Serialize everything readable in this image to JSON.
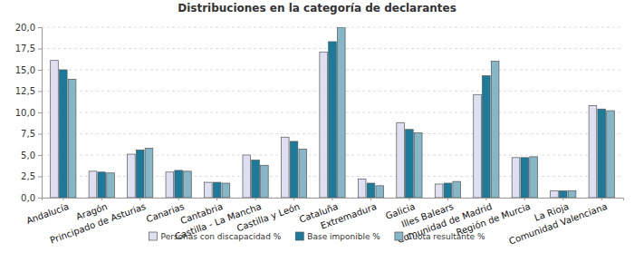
{
  "chart_data": {
    "type": "bar",
    "title": "Distribuciones en la categoría de declarantes",
    "categories": [
      "Andalucía",
      "Aragón",
      "Principado de Asturias",
      "Canarias",
      "Cantabria",
      "Castilla - La Mancha",
      "Castilla y León",
      "Cataluña",
      "Extremadura",
      "Galicia",
      "Illes Balears",
      "Comunidad de Madrid",
      "Región de Murcia",
      "La Rioja",
      "Comunidad Valenciana"
    ],
    "series": [
      {
        "name": "Personas con discapacidad %",
        "color": "#dedff0",
        "values": [
          16.1,
          3.1,
          5.1,
          3.0,
          1.8,
          5.0,
          7.1,
          17.1,
          2.2,
          8.8,
          1.6,
          12.1,
          4.7,
          0.8,
          10.8
        ]
      },
      {
        "name": "Base imponible %",
        "color": "#1b7b9c",
        "values": [
          15.0,
          3.0,
          5.6,
          3.2,
          1.8,
          4.4,
          6.6,
          18.3,
          1.7,
          8.0,
          1.7,
          14.3,
          4.7,
          0.8,
          10.4
        ]
      },
      {
        "name": "Cuota resultante %",
        "color": "#86b7c8",
        "values": [
          13.9,
          2.9,
          5.8,
          3.1,
          1.7,
          3.8,
          5.7,
          20.0,
          1.4,
          7.6,
          1.9,
          16.0,
          4.8,
          0.8,
          10.2
        ]
      }
    ],
    "ylim": [
      0,
      20
    ],
    "yticks": [
      {
        "value": 0,
        "label": "0,0"
      },
      {
        "value": 2.5,
        "label": "2,5"
      },
      {
        "value": 5,
        "label": "5,0"
      },
      {
        "value": 7.5,
        "label": "7,5"
      },
      {
        "value": 10,
        "label": "10,0"
      },
      {
        "value": 12.5,
        "label": "12,5"
      },
      {
        "value": 15,
        "label": "15,0"
      },
      {
        "value": 17.5,
        "label": "17,5"
      },
      {
        "value": 20,
        "label": "20,0"
      }
    ],
    "grid": true,
    "legend": "bottom"
  }
}
